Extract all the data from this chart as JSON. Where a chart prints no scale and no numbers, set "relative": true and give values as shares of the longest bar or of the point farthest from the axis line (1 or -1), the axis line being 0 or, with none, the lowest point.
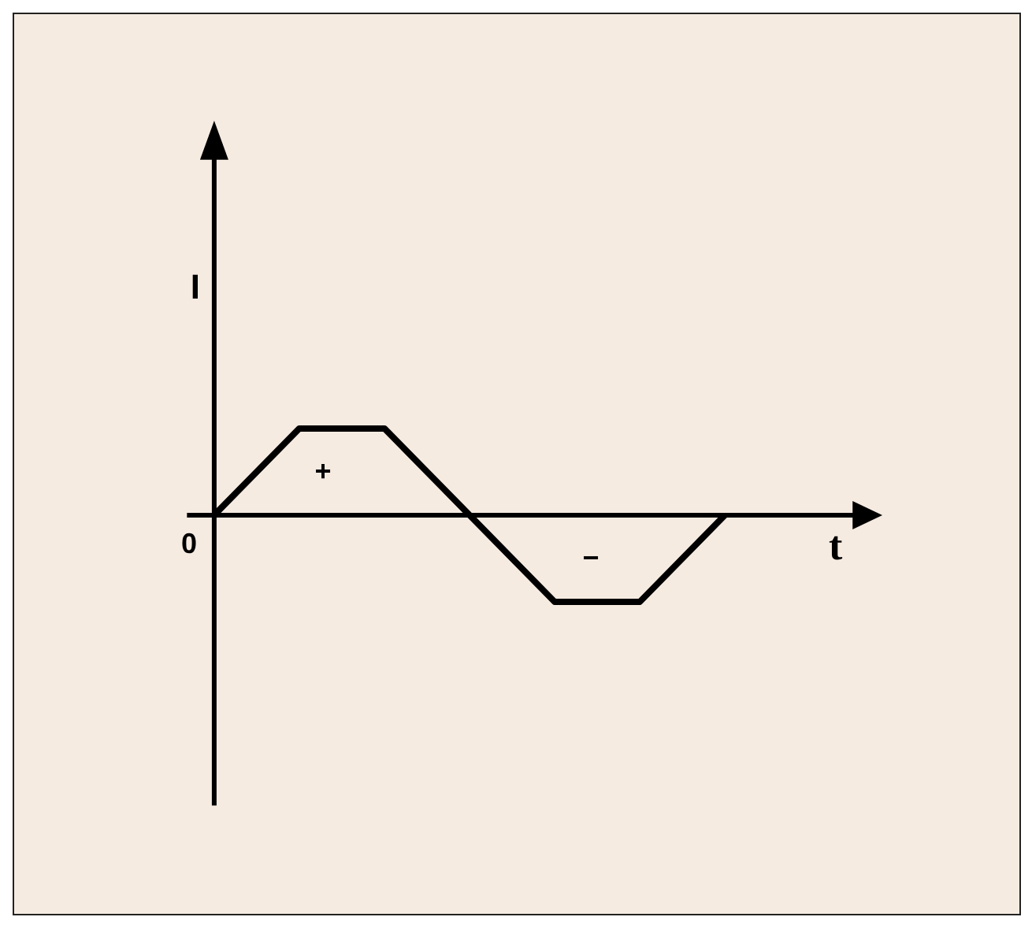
{
  "chart_data": {
    "type": "line",
    "relative": true,
    "xlabel": "t",
    "ylabel": "I",
    "categories": [
      null,
      null,
      null,
      null,
      null,
      null,
      null
    ],
    "series": [
      {
        "color": "#000000",
        "values": [
          0,
          1,
          1,
          0,
          -1,
          -1,
          0
        ]
      }
    ],
    "annotations": [
      "0",
      "+",
      "−"
    ],
    "marker": "none",
    "line_style": "solid"
  }
}
